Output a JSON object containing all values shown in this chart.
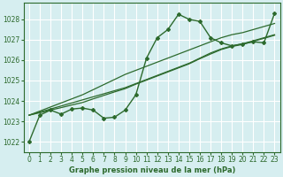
{
  "x": [
    0,
    1,
    2,
    3,
    4,
    5,
    6,
    7,
    8,
    9,
    10,
    11,
    12,
    13,
    14,
    15,
    16,
    17,
    18,
    19,
    20,
    21,
    22,
    23
  ],
  "y_main": [
    1022.0,
    1023.3,
    1023.55,
    1023.35,
    1023.6,
    1023.65,
    1023.55,
    1023.15,
    1023.2,
    1023.55,
    1024.3,
    1026.1,
    1027.1,
    1027.5,
    1028.25,
    1028.0,
    1027.9,
    1027.1,
    1026.85,
    1026.7,
    1026.8,
    1026.9,
    1026.85,
    1028.3
  ],
  "y_trend_steep": [
    1023.3,
    1023.5,
    1023.7,
    1023.9,
    1024.1,
    1024.3,
    1024.55,
    1024.8,
    1025.05,
    1025.3,
    1025.5,
    1025.7,
    1025.9,
    1026.1,
    1026.3,
    1026.5,
    1026.7,
    1026.9,
    1027.1,
    1027.25,
    1027.35,
    1027.5,
    1027.65,
    1027.8
  ],
  "y_trend_mid1": [
    1023.3,
    1023.45,
    1023.6,
    1023.75,
    1023.9,
    1024.05,
    1024.2,
    1024.35,
    1024.5,
    1024.65,
    1024.85,
    1025.05,
    1025.25,
    1025.45,
    1025.65,
    1025.85,
    1026.1,
    1026.35,
    1026.55,
    1026.7,
    1026.8,
    1026.95,
    1027.1,
    1027.25
  ],
  "y_trend_mid2": [
    1023.3,
    1023.42,
    1023.55,
    1023.67,
    1023.8,
    1023.92,
    1024.1,
    1024.27,
    1024.44,
    1024.6,
    1024.82,
    1025.02,
    1025.22,
    1025.42,
    1025.62,
    1025.82,
    1026.07,
    1026.3,
    1026.52,
    1026.67,
    1026.77,
    1026.92,
    1027.07,
    1027.22
  ],
  "bg_color": "#d6eef0",
  "grid_color": "#ffffff",
  "line_color": "#2d6a2d",
  "title": "Graphe pression niveau de la mer (hPa)",
  "xlim": [
    -0.5,
    23.5
  ],
  "ylim": [
    1021.5,
    1028.8
  ],
  "yticks": [
    1022,
    1023,
    1024,
    1025,
    1026,
    1027,
    1028
  ],
  "xticks": [
    0,
    1,
    2,
    3,
    4,
    5,
    6,
    7,
    8,
    9,
    10,
    11,
    12,
    13,
    14,
    15,
    16,
    17,
    18,
    19,
    20,
    21,
    22,
    23
  ]
}
